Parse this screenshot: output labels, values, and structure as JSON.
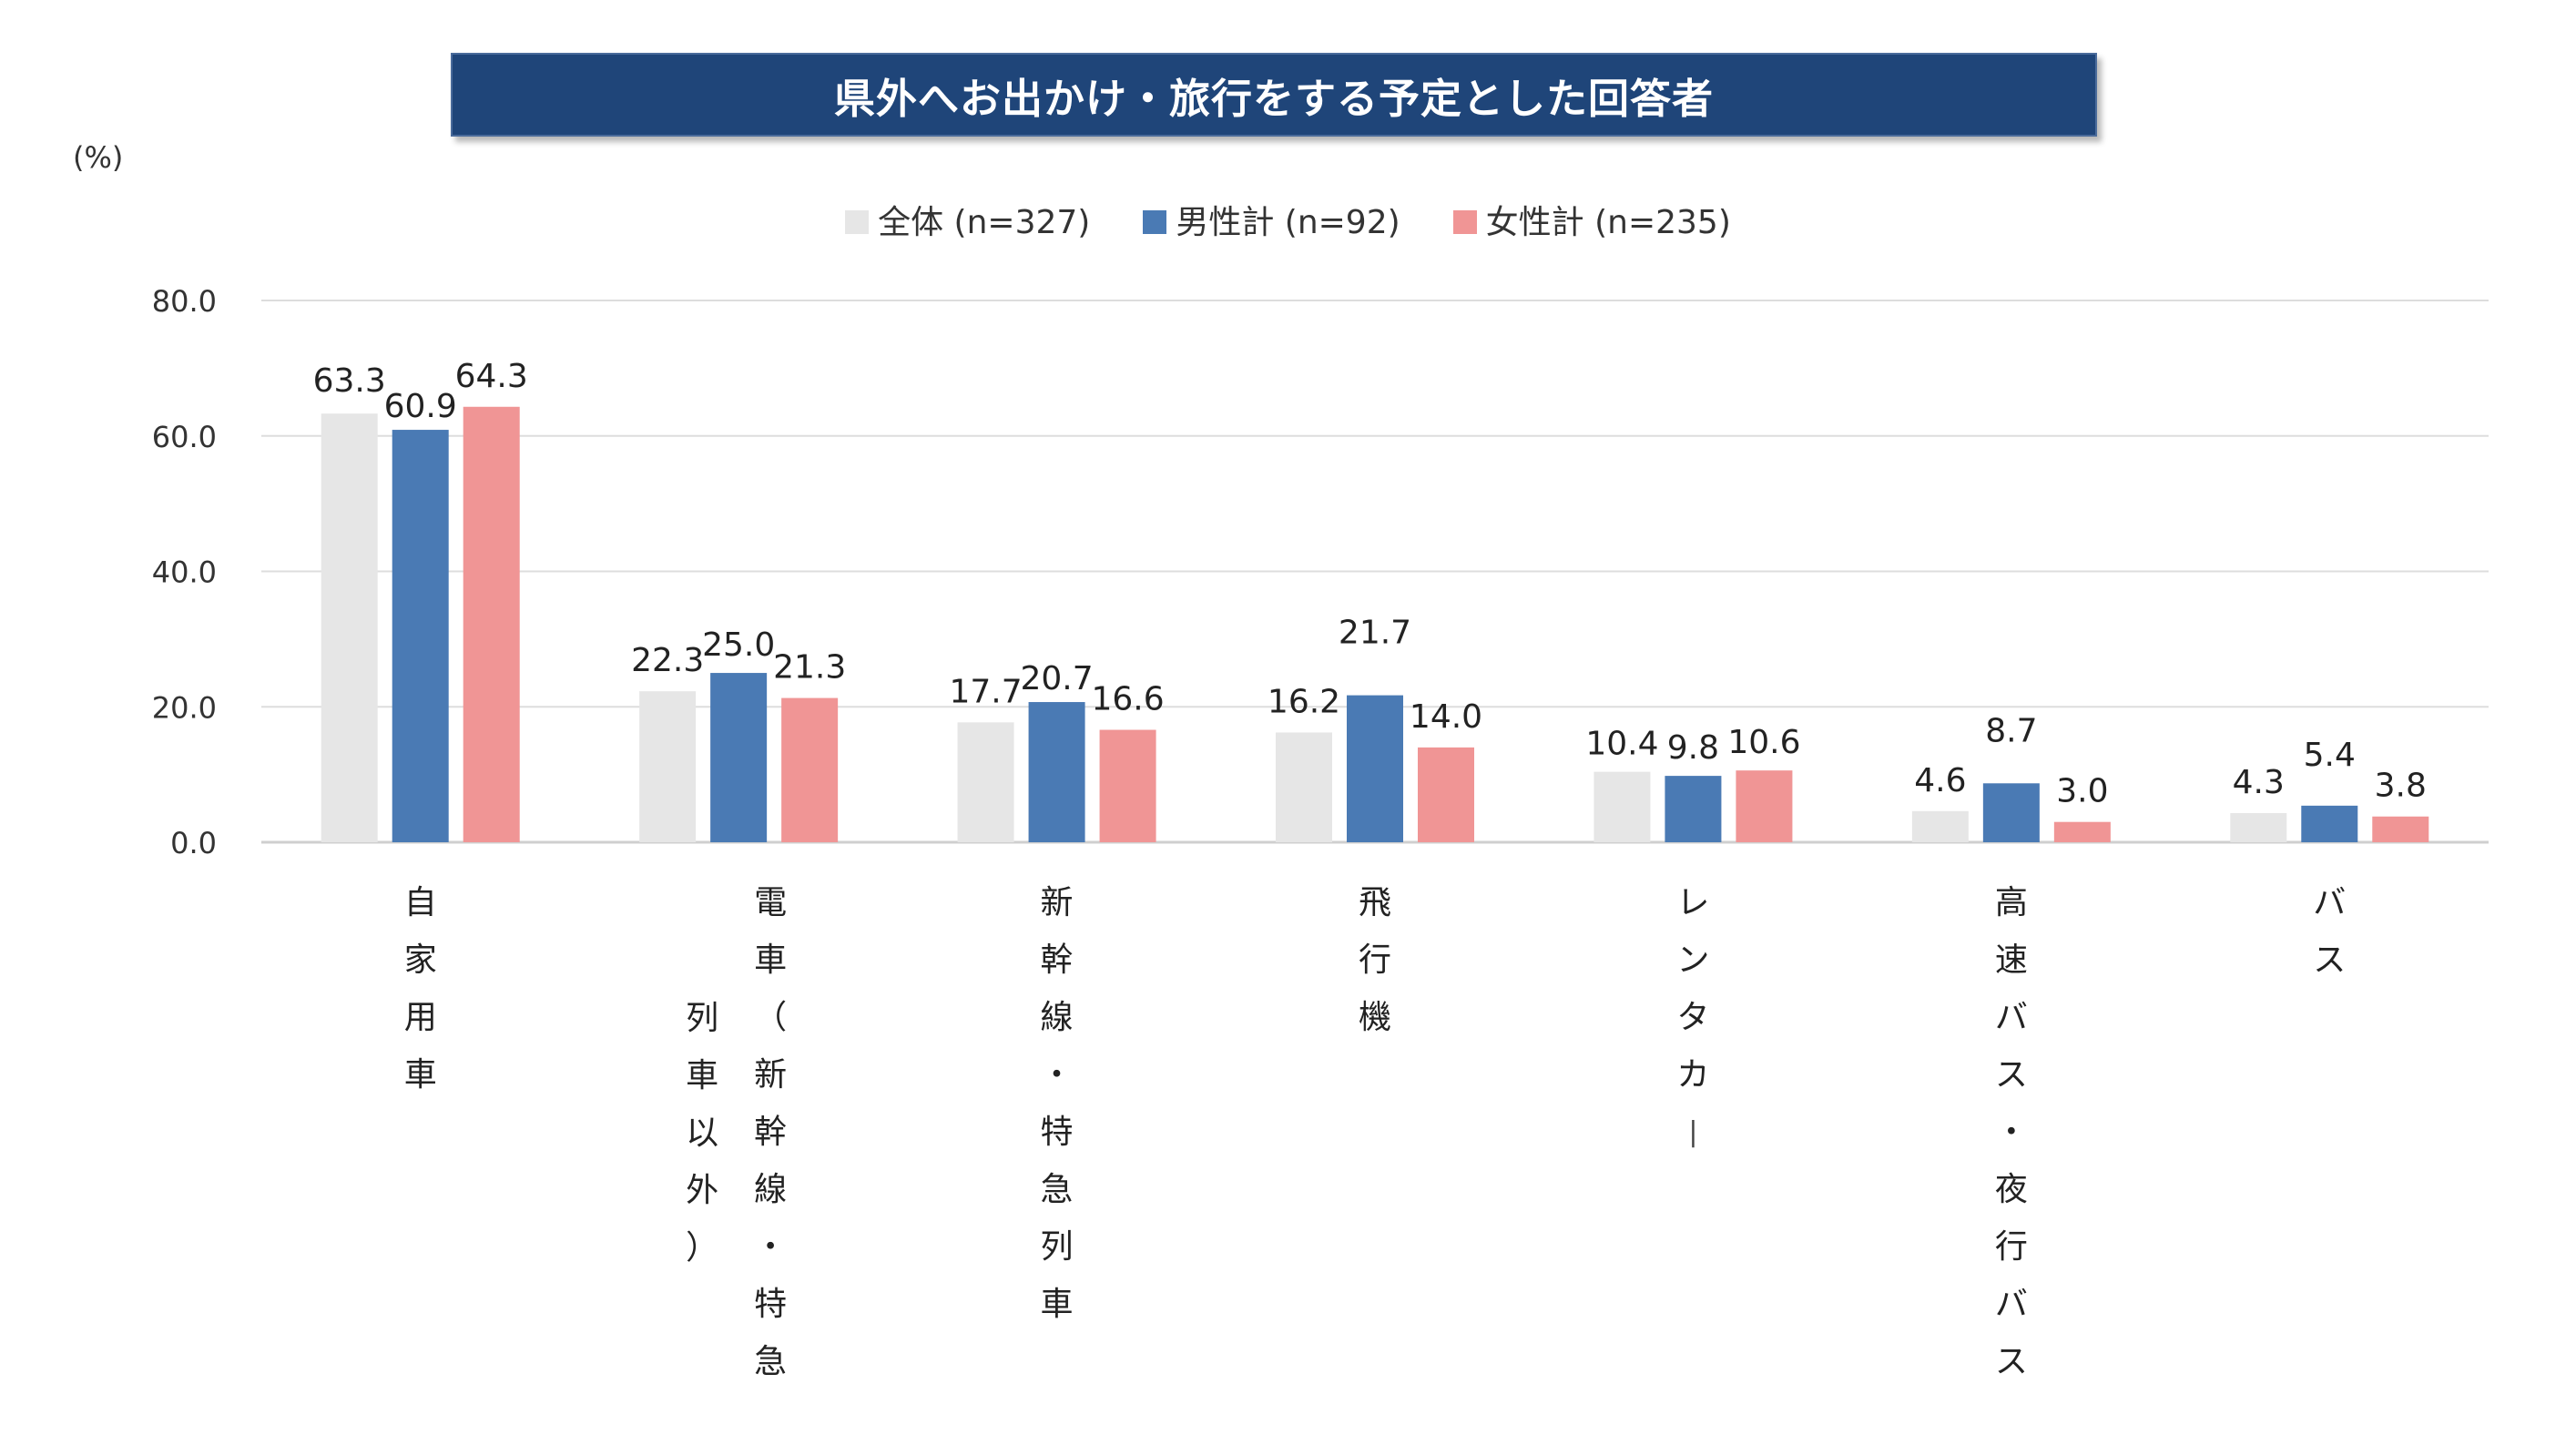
{
  "chart_data": {
    "type": "bar",
    "title": "県外へお出かけ・旅行をする予定とした回答者",
    "ylabel": "(%)",
    "xlabel": "",
    "ylim": [
      0,
      80
    ],
    "yticks": [
      "0.0",
      "20.0",
      "40.0",
      "60.0",
      "80.0"
    ],
    "grid": true,
    "legend_position": "top",
    "categories": [
      "自家用車",
      "電車（新幹線・特急列車以外）",
      "新幹線・特急列車",
      "飛行機",
      "レンタカー",
      "高速バス・夜行バス",
      "バス"
    ],
    "category_columns": [
      [
        "自家用車"
      ],
      [
        "電車（新幹線・特急",
        "列車以外）"
      ],
      [
        "新幹線・特急列車"
      ],
      [
        "飛行機"
      ],
      [
        "レンタカー"
      ],
      [
        "高速バス・夜行バス"
      ],
      [
        "バス"
      ]
    ],
    "series": [
      {
        "name": "全体 (n=327)",
        "color": "#e6e6e6",
        "values": [
          63.3,
          22.3,
          17.7,
          16.2,
          10.4,
          4.6,
          4.3
        ],
        "labels": [
          "63.3",
          "22.3",
          "17.7",
          "16.2",
          "10.4",
          "4.6",
          "4.3"
        ]
      },
      {
        "name": "男性計 (n=92)",
        "color": "#4a7ab4",
        "values": [
          60.9,
          25.0,
          20.7,
          21.7,
          9.8,
          8.7,
          5.4
        ],
        "labels": [
          "60.9",
          "25.0",
          "20.7",
          "21.7",
          "9.8",
          "8.7",
          "5.4"
        ]
      },
      {
        "name": "女性計 (n=235)",
        "color": "#f09595",
        "values": [
          64.3,
          21.3,
          16.6,
          14.0,
          10.6,
          3.0,
          3.8
        ],
        "labels": [
          "64.3",
          "21.3",
          "16.6",
          "14.0",
          "10.6",
          "3.0",
          "3.8"
        ]
      }
    ]
  }
}
